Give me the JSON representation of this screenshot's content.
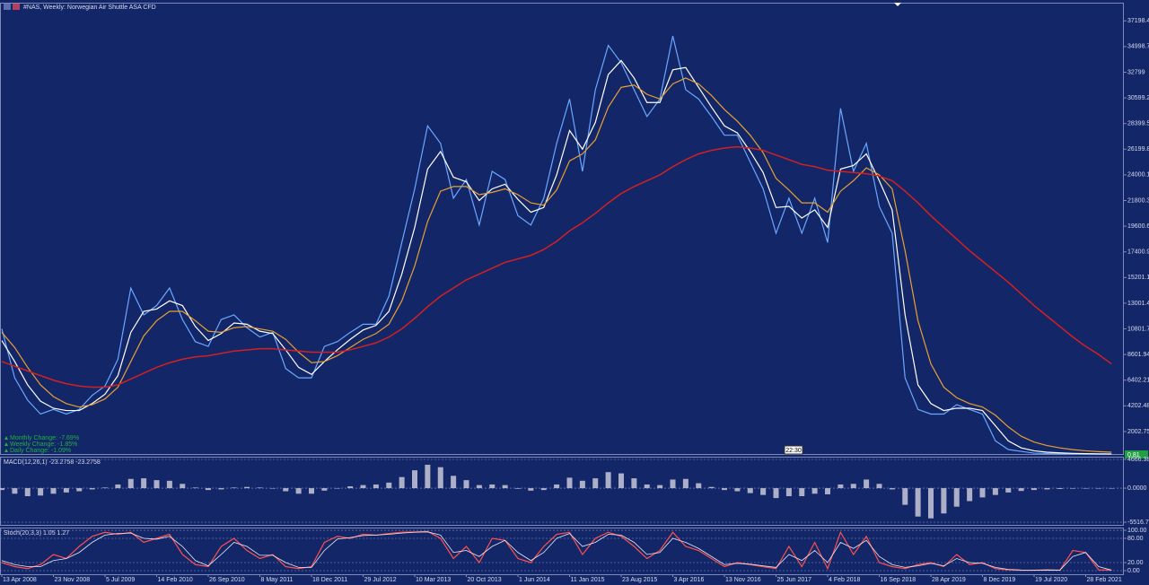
{
  "chart_data": [
    {
      "type": "line",
      "title": "#NAS, Weekly:  Norwegian Air Shuttle ASA CFD",
      "info": [
        "Monthly Change: -7.69%",
        "Weekly Change: -1.85%",
        "Daily Change: -1.09%"
      ],
      "time_label": "22:30",
      "last_price": 0.81,
      "categories": [
        "13 Apr 2008",
        null,
        null,
        null,
        "23 Nov 2008",
        null,
        null,
        null,
        "5 Jul 2009",
        null,
        null,
        null,
        "14 Feb 2010",
        null,
        null,
        null,
        "26 Sep 2010",
        null,
        null,
        null,
        "8 May 2011",
        null,
        null,
        null,
        "18 Dec 2011",
        null,
        null,
        null,
        "29 Jul 2012",
        null,
        null,
        null,
        "10 Mar 2013",
        null,
        null,
        null,
        "20 Oct 2013",
        null,
        null,
        null,
        "1 Jun 2014",
        null,
        null,
        null,
        "11 Jan 2015",
        null,
        null,
        null,
        "23 Aug 2015",
        null,
        null,
        null,
        "3 Apr 2016",
        null,
        null,
        null,
        "13 Nov 2016",
        null,
        null,
        null,
        "25 Jun 2017",
        null,
        null,
        null,
        "4 Feb 2018",
        null,
        null,
        null,
        "16 Sep 2018",
        null,
        null,
        null,
        "28 Apr 2019",
        null,
        null,
        null,
        "8 Dec 2019",
        null,
        null,
        null,
        "19 Jul 2020",
        null,
        null,
        null,
        "28 Feb 2021",
        null,
        null
      ],
      "series": [
        {
          "name": "Price",
          "color": "#6aa8ff",
          "width": 1.2,
          "values": [
            10800,
            6600,
            4700,
            3500,
            3900,
            3500,
            3900,
            5100,
            5900,
            8200,
            14300,
            12000,
            12800,
            14300,
            11600,
            9700,
            9300,
            11600,
            12000,
            10900,
            10100,
            10500,
            7400,
            6600,
            6600,
            9300,
            9700,
            10500,
            11200,
            11200,
            13600,
            18200,
            22800,
            28200,
            26700,
            22000,
            23600,
            19700,
            24300,
            23600,
            20500,
            19700,
            22000,
            26700,
            30500,
            24300,
            31300,
            35100,
            33600,
            31300,
            29000,
            30500,
            35900,
            31300,
            30500,
            29000,
            27400,
            27400,
            25100,
            22800,
            19000,
            22000,
            19000,
            22000,
            18200,
            29700,
            24300,
            26700,
            21300,
            19000,
            6600,
            3900,
            3500,
            3500,
            4300,
            3900,
            3500,
            1200,
            460,
            300,
            150,
            120,
            100,
            90,
            80,
            70,
            60
          ]
        },
        {
          "name": "MA fast",
          "color": "#ffffff",
          "width": 1.2,
          "values": [
            9800,
            8000,
            6000,
            4600,
            4000,
            3800,
            3800,
            4400,
            5200,
            6800,
            10500,
            12300,
            12500,
            13200,
            12800,
            11000,
            9800,
            10400,
            11300,
            11200,
            10600,
            10400,
            9000,
            7500,
            6900,
            8000,
            9000,
            9900,
            10700,
            11100,
            12300,
            15500,
            19500,
            24500,
            26000,
            23800,
            23400,
            21800,
            22800,
            23200,
            21900,
            20800,
            21200,
            24000,
            27800,
            26200,
            28500,
            32600,
            33800,
            32300,
            30200,
            30200,
            33000,
            33200,
            31500,
            29800,
            28200,
            27600,
            26000,
            24200,
            21200,
            21300,
            20300,
            21000,
            19500,
            24500,
            24800,
            25800,
            23500,
            21000,
            12000,
            6000,
            4400,
            3800,
            4000,
            4000,
            3800,
            2500,
            1200,
            600,
            350,
            230,
            170,
            130,
            110,
            90,
            80
          ]
        },
        {
          "name": "MA mid",
          "color": "#e8a030",
          "width": 1.2,
          "values": [
            10500,
            9200,
            7500,
            6000,
            5000,
            4400,
            4100,
            4300,
            4800,
            5800,
            8000,
            10200,
            11500,
            12300,
            12300,
            11500,
            10600,
            10500,
            10900,
            11000,
            10800,
            10600,
            9900,
            8800,
            7900,
            8000,
            8500,
            9200,
            9900,
            10400,
            11200,
            13200,
            16200,
            20000,
            22600,
            23000,
            23000,
            22300,
            22500,
            22800,
            22300,
            21600,
            21400,
            22700,
            25200,
            25800,
            27000,
            29800,
            31500,
            31700,
            30900,
            30500,
            31800,
            32300,
            31800,
            30800,
            29600,
            28600,
            27400,
            25900,
            23700,
            22700,
            21600,
            21600,
            20800,
            22600,
            23500,
            24600,
            24000,
            22800,
            17500,
            11500,
            7800,
            5800,
            4900,
            4400,
            4100,
            3400,
            2400,
            1600,
            1100,
            800,
            600,
            450,
            350,
            280,
            230
          ]
        },
        {
          "name": "MA slow",
          "color": "#d42020",
          "width": 1.5,
          "values": [
            8000,
            7600,
            7200,
            6800,
            6400,
            6100,
            5900,
            5800,
            5800,
            6000,
            6500,
            7000,
            7500,
            7900,
            8200,
            8400,
            8500,
            8700,
            8900,
            9000,
            9100,
            9100,
            9000,
            8900,
            8800,
            8800,
            8800,
            9000,
            9300,
            9600,
            10100,
            10800,
            11700,
            12700,
            13600,
            14300,
            15000,
            15500,
            16000,
            16500,
            16800,
            17100,
            17600,
            18300,
            19200,
            19900,
            20700,
            21600,
            22400,
            23000,
            23500,
            24000,
            24700,
            25300,
            25800,
            26100,
            26300,
            26400,
            26300,
            26100,
            25700,
            25300,
            24900,
            24700,
            24400,
            24300,
            24200,
            24100,
            23900,
            23500,
            22600,
            21600,
            20500,
            19500,
            18500,
            17500,
            16600,
            15700,
            14800,
            13800,
            12800,
            11900,
            11000,
            10100,
            9300,
            8600,
            7800
          ]
        }
      ],
      "ylim": [
        76,
        38755
      ],
      "yticks": [
        2002.75,
        4202.48,
        6402.21,
        8601.94,
        10801.7,
        13001.4,
        15201.1,
        17400.9,
        19600.6,
        21800.3,
        24000.1,
        26199.8,
        28399.5,
        30599.2,
        32799,
        34998.7,
        37198.4
      ],
      "grid": false
    },
    {
      "type": "bar",
      "title": "MACD(12,26,1) -23.2758 -23.2758",
      "series": [
        {
          "name": "MACD",
          "color": "#c8c8d8",
          "values": [
            -300,
            -900,
            -1300,
            -1200,
            -900,
            -700,
            -500,
            -200,
            100,
            600,
            1500,
            1600,
            1300,
            1200,
            700,
            100,
            -300,
            -200,
            100,
            200,
            100,
            0,
            -500,
            -900,
            -900,
            -400,
            0,
            300,
            500,
            600,
            900,
            1800,
            2900,
            3800,
            3400,
            2000,
            1300,
            500,
            600,
            500,
            -100,
            -400,
            -300,
            600,
            1700,
            1200,
            1600,
            2600,
            2400,
            1600,
            600,
            500,
            1400,
            1500,
            800,
            200,
            -300,
            -500,
            -800,
            -1100,
            -1600,
            -1300,
            -1300,
            -900,
            -1000,
            600,
            700,
            1400,
            700,
            -200,
            -2700,
            -4600,
            -4900,
            -4100,
            -3000,
            -2100,
            -1500,
            -1100,
            -700,
            -450,
            -300,
            -200,
            -130,
            -80,
            -50,
            -30,
            -23.2758
          ]
        }
      ],
      "ylim": [
        -6100,
        5104
      ],
      "yticks": [
        4666.384,
        {
          "value": 0,
          "label": "0.0000"
        },
        -5516.76
      ],
      "grid": true
    },
    {
      "type": "line",
      "title": "Stoch(20,3,3) 1.05 1.27",
      "series": [
        {
          "name": "%K",
          "color": "#ff5050",
          "width": 1.2,
          "values": [
            20,
            10,
            5,
            15,
            40,
            30,
            60,
            85,
            95,
            90,
            95,
            70,
            80,
            90,
            40,
            15,
            10,
            60,
            80,
            50,
            30,
            40,
            10,
            5,
            10,
            70,
            85,
            80,
            90,
            88,
            92,
            95,
            96,
            97,
            80,
            30,
            60,
            20,
            80,
            75,
            30,
            20,
            60,
            90,
            95,
            40,
            80,
            95,
            85,
            60,
            30,
            50,
            95,
            60,
            50,
            30,
            10,
            20,
            15,
            10,
            5,
            60,
            10,
            70,
            5,
            95,
            40,
            85,
            20,
            10,
            5,
            15,
            20,
            10,
            40,
            15,
            20,
            5,
            2,
            1,
            1,
            2,
            1,
            50,
            45,
            2,
            1.05
          ]
        },
        {
          "name": "%D",
          "color": "#e8e8f0",
          "width": 0.8,
          "values": [
            25,
            15,
            10,
            10,
            25,
            30,
            45,
            70,
            88,
            92,
            93,
            80,
            78,
            85,
            60,
            25,
            12,
            40,
            70,
            60,
            38,
            38,
            20,
            8,
            8,
            50,
            78,
            82,
            87,
            88,
            90,
            93,
            95,
            96,
            88,
            45,
            50,
            35,
            60,
            75,
            45,
            25,
            45,
            80,
            92,
            60,
            70,
            90,
            88,
            70,
            40,
            45,
            80,
            70,
            55,
            35,
            15,
            18,
            16,
            12,
            8,
            40,
            25,
            50,
            20,
            70,
            55,
            75,
            35,
            15,
            8,
            12,
            18,
            12,
            30,
            20,
            18,
            8,
            3,
            1.5,
            1,
            1.5,
            1.2,
            35,
            45,
            10,
            1.27
          ]
        }
      ],
      "ylim": [
        -8.9,
        106.7
      ],
      "yticks": [
        {
          "value": 100,
          "label": "100.00"
        },
        {
          "value": 80,
          "label": "80.00"
        },
        {
          "value": 20,
          "label": "20.00"
        },
        {
          "value": 0,
          "label": "0.00"
        }
      ],
      "grid": true
    }
  ]
}
